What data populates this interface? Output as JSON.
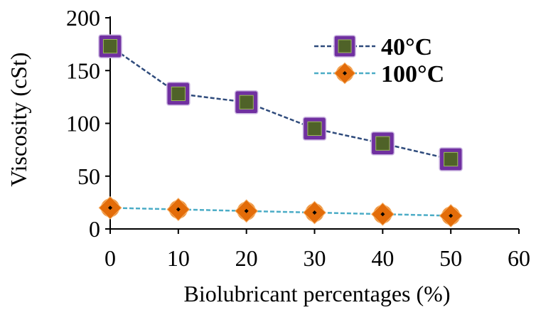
{
  "chart_data": {
    "type": "line",
    "xlabel": "Biolubricant percentages (%)",
    "ylabel": "Viscosity (cSt)",
    "xlim": [
      0,
      60
    ],
    "ylim": [
      0,
      200
    ],
    "x_ticks": [
      0,
      10,
      20,
      30,
      40,
      50,
      60
    ],
    "y_ticks": [
      0,
      50,
      100,
      150,
      200
    ],
    "grid": false,
    "legend_position": "top-right",
    "x": [
      0,
      10,
      20,
      30,
      40,
      50
    ],
    "series": [
      {
        "name": "40°C",
        "values": [
          173,
          128,
          120,
          95,
          81,
          66
        ],
        "line_color": "#2f4b7c",
        "marker": "square",
        "marker_border": "#7030a0",
        "marker_fill": "#4f6228"
      },
      {
        "name": "100°C",
        "values": [
          20,
          18.5,
          17,
          15.5,
          14,
          12.5
        ],
        "line_color": "#4bacc6",
        "marker": "diamond-circle",
        "marker_fill": "#e36c09",
        "marker_center": "#000000"
      }
    ]
  }
}
